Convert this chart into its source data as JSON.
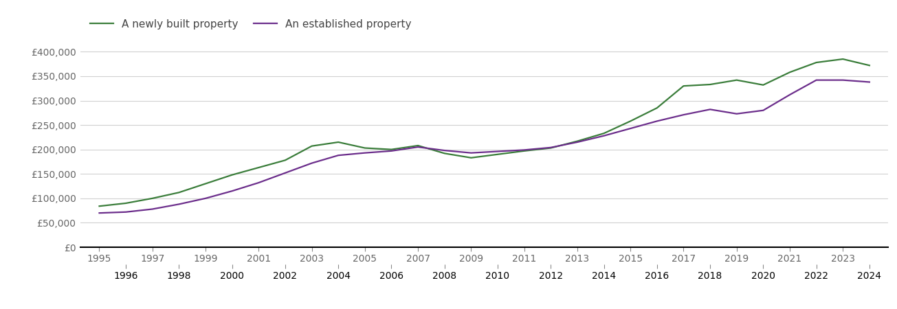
{
  "newly_built": {
    "years": [
      1995,
      1996,
      1997,
      1998,
      1999,
      2000,
      2001,
      2002,
      2003,
      2004,
      2005,
      2006,
      2007,
      2008,
      2009,
      2010,
      2011,
      2012,
      2013,
      2014,
      2015,
      2016,
      2017,
      2018,
      2019,
      2020,
      2021,
      2022,
      2023,
      2024
    ],
    "values": [
      84000,
      90000,
      100000,
      112000,
      130000,
      148000,
      163000,
      178000,
      207000,
      215000,
      203000,
      200000,
      208000,
      192000,
      183000,
      190000,
      197000,
      203000,
      217000,
      233000,
      258000,
      285000,
      330000,
      333000,
      342000,
      332000,
      358000,
      378000,
      385000,
      372000
    ]
  },
  "established": {
    "years": [
      1995,
      1996,
      1997,
      1998,
      1999,
      2000,
      2001,
      2002,
      2003,
      2004,
      2005,
      2006,
      2007,
      2008,
      2009,
      2010,
      2011,
      2012,
      2013,
      2014,
      2015,
      2016,
      2017,
      2018,
      2019,
      2020,
      2021,
      2022,
      2023,
      2024
    ],
    "values": [
      70000,
      72000,
      78000,
      88000,
      100000,
      115000,
      132000,
      152000,
      172000,
      188000,
      193000,
      197000,
      205000,
      198000,
      193000,
      196000,
      199000,
      204000,
      215000,
      228000,
      243000,
      258000,
      271000,
      282000,
      273000,
      280000,
      312000,
      342000,
      342000,
      338000
    ]
  },
  "newly_color": "#3a7d3a",
  "established_color": "#6b2d8b",
  "line_width": 1.6,
  "ylim": [
    0,
    430000
  ],
  "yticks": [
    0,
    50000,
    100000,
    150000,
    200000,
    250000,
    300000,
    350000,
    400000
  ],
  "ytick_labels": [
    "£0",
    "£50,000",
    "£100,000",
    "£150,000",
    "£200,000",
    "£250,000",
    "£300,000",
    "£350,000",
    "£400,000"
  ],
  "legend_newly": "A newly built property",
  "legend_established": "An established property",
  "grid_color": "#d0d0d0",
  "odd_years": [
    1995,
    1997,
    1999,
    2001,
    2003,
    2005,
    2007,
    2009,
    2011,
    2013,
    2015,
    2017,
    2019,
    2021,
    2023
  ],
  "even_years": [
    1996,
    1998,
    2000,
    2002,
    2004,
    2006,
    2008,
    2010,
    2012,
    2014,
    2016,
    2018,
    2020,
    2022,
    2024
  ],
  "tick_label_color": "#666666",
  "tick_fontsize": 10,
  "legend_fontsize": 11
}
